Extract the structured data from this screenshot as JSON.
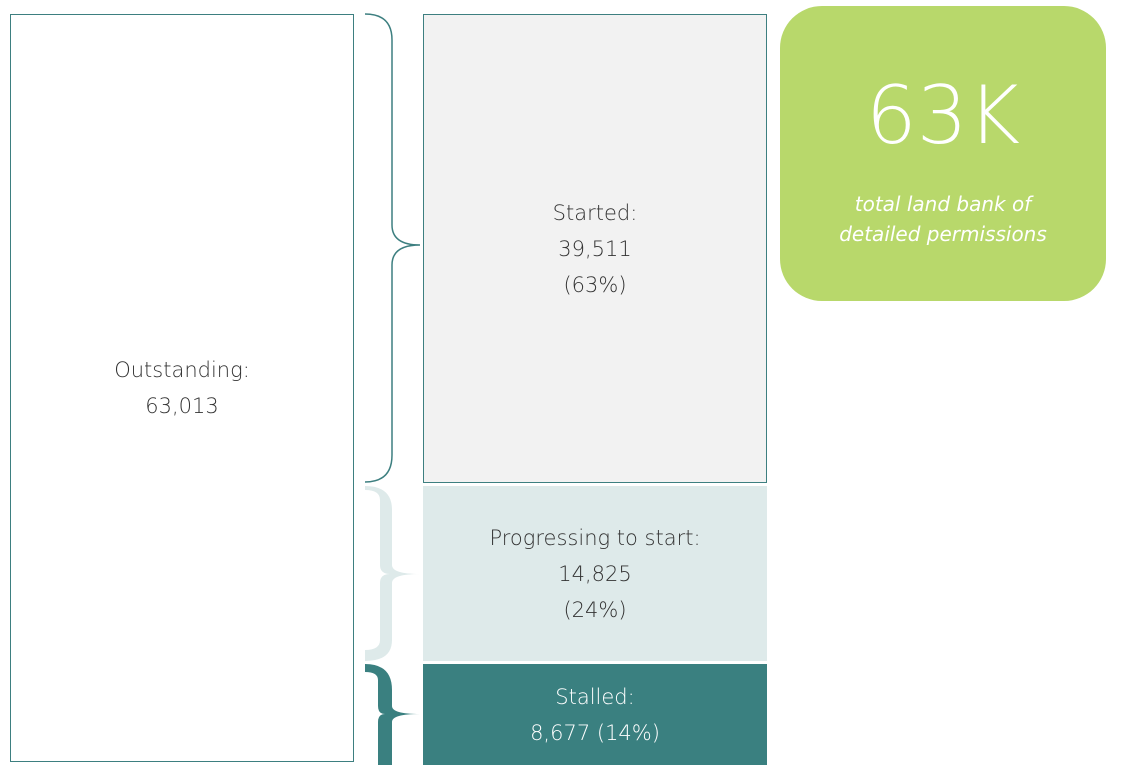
{
  "outstanding": {
    "label": "Outstanding:",
    "value": "63,013"
  },
  "started": {
    "label": "Started:",
    "value": "39,511",
    "share": "(63%)"
  },
  "progressing": {
    "label": "Progressing to start:",
    "value": "14,825",
    "share": "(24%)"
  },
  "stalled": {
    "label": "Stalled:",
    "value": "8,677",
    "share": "(14%)"
  },
  "callout": {
    "headline": "63K",
    "lines": [
      "total land bank of",
      "detailed permissions"
    ]
  }
}
